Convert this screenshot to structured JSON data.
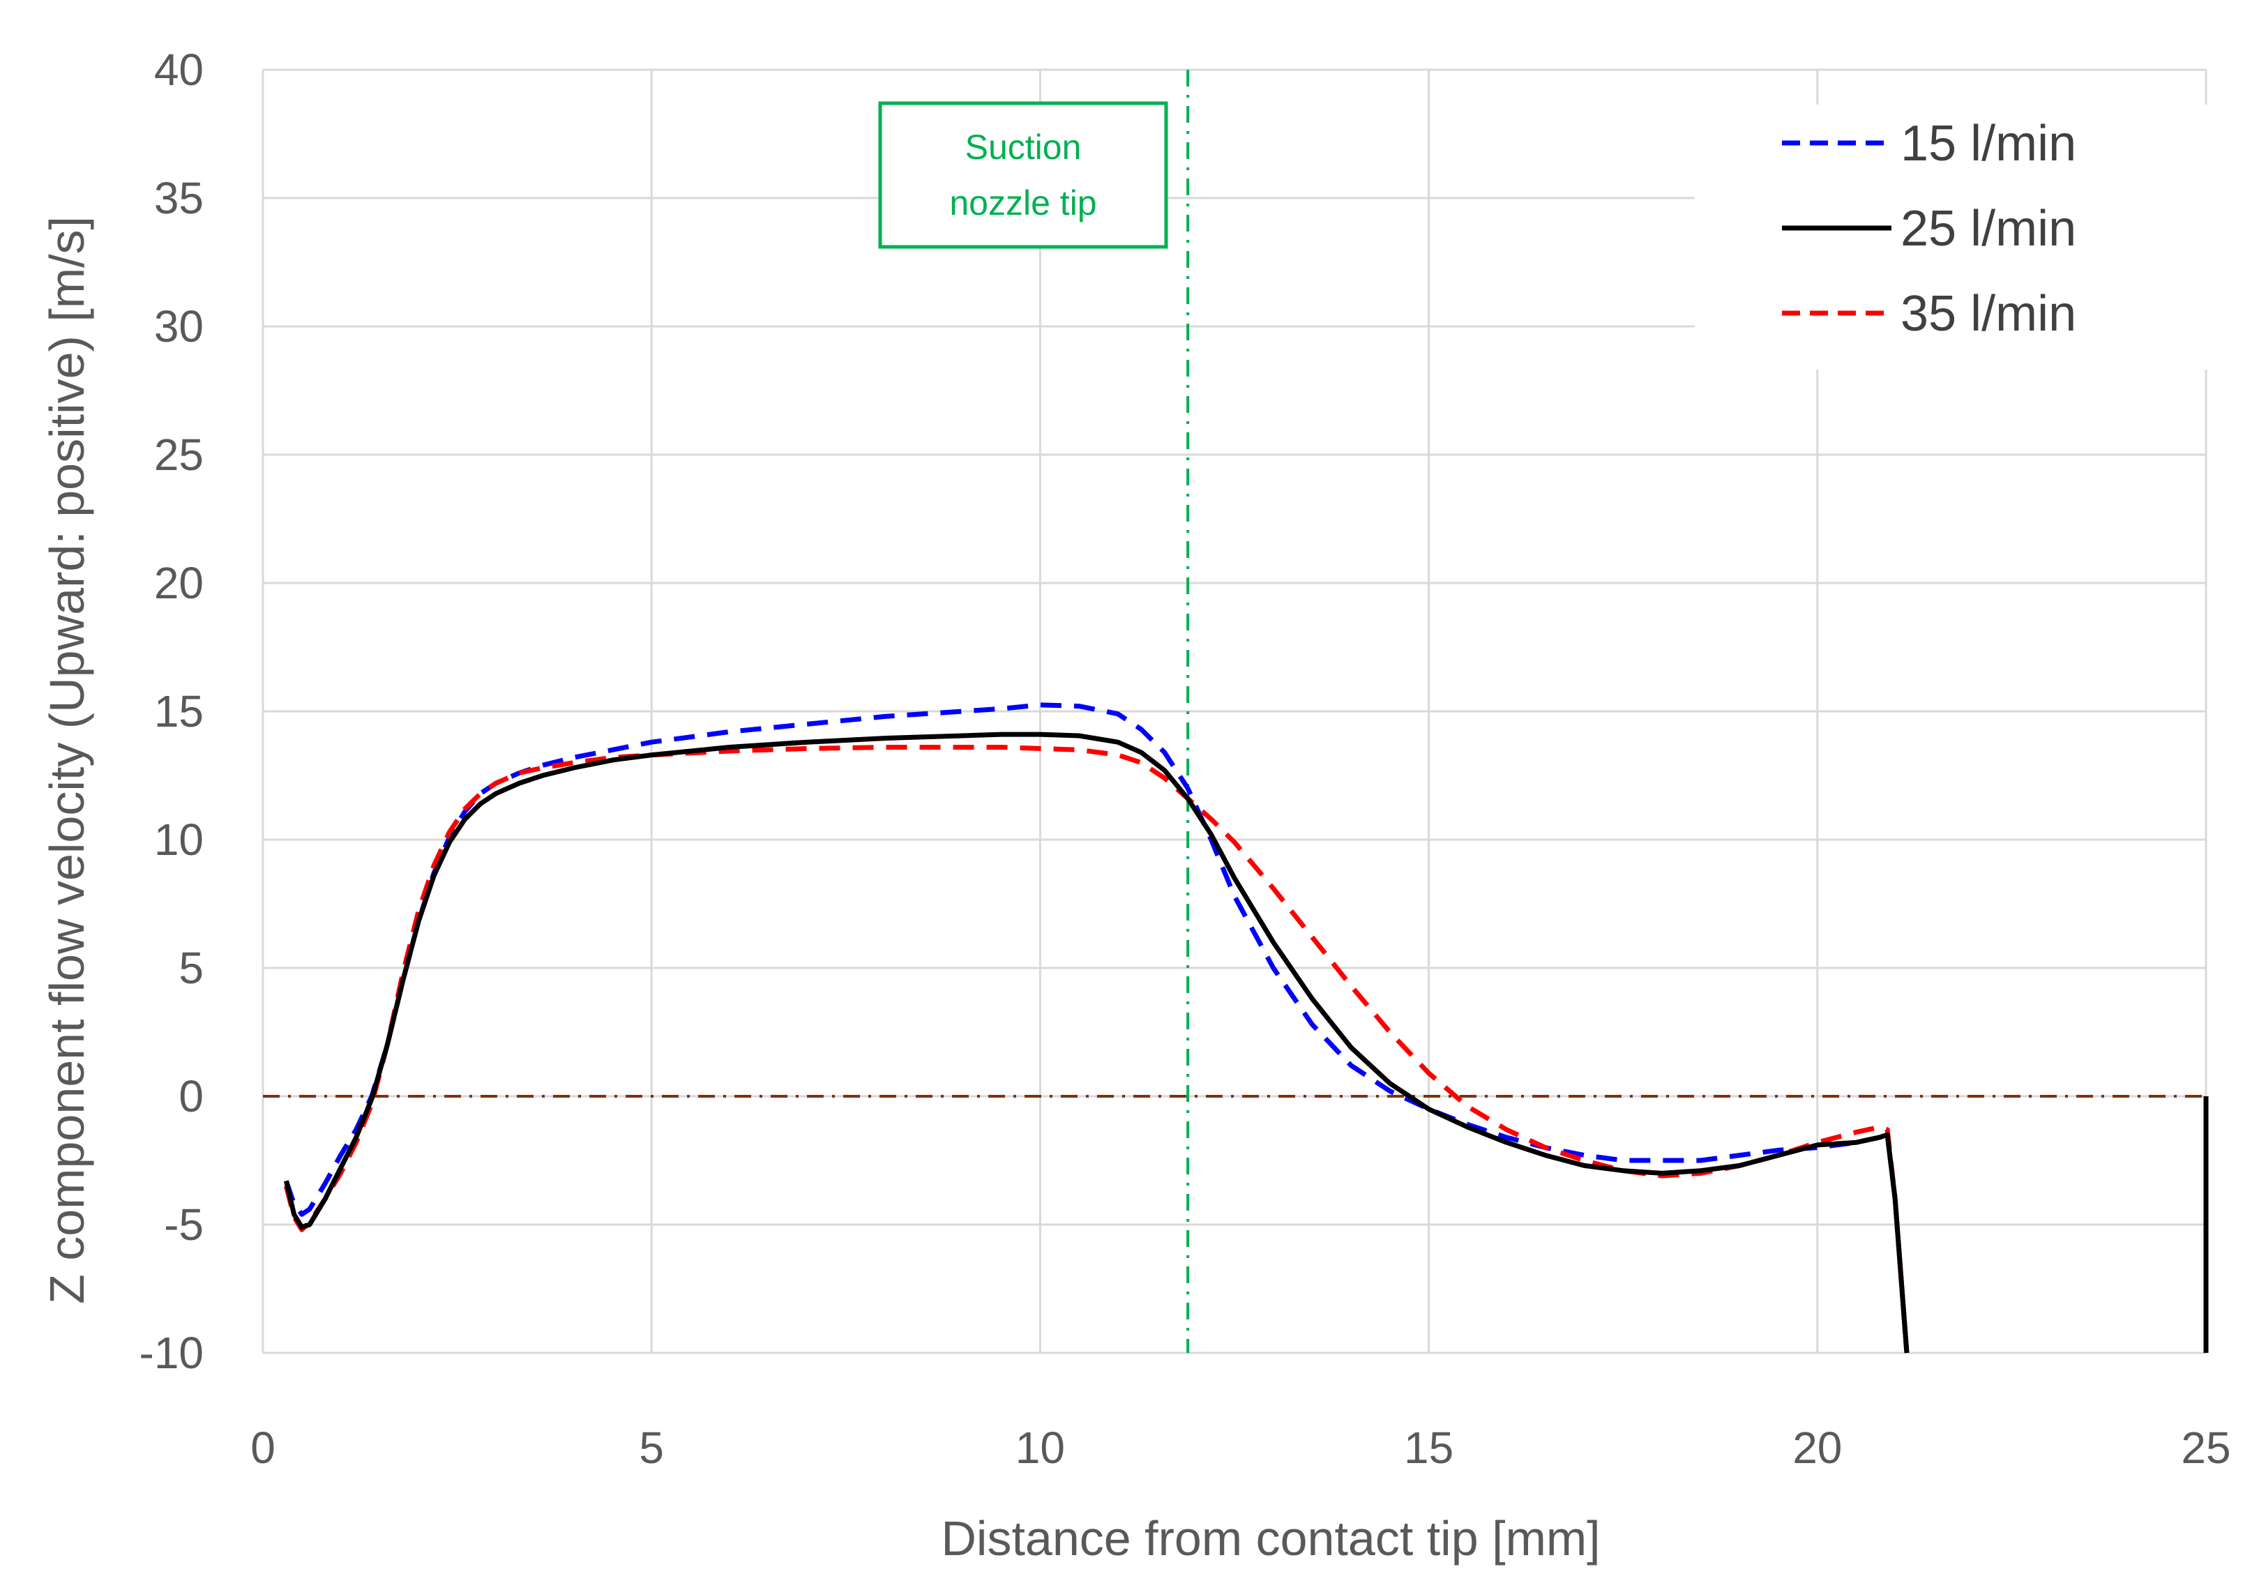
{
  "chart_data": {
    "type": "line",
    "title": "",
    "xlabel": "Distance from contact tip [mm]",
    "ylabel": "Z component flow velocity (Upward: positive) [m/s]",
    "xlim": [
      0,
      25
    ],
    "ylim": [
      -10,
      40
    ],
    "xticks": [
      0,
      5,
      10,
      15,
      20,
      25
    ],
    "yticks": [
      -10,
      -5,
      0,
      5,
      10,
      15,
      20,
      25,
      30,
      35,
      40
    ],
    "grid": true,
    "legend_position": "top-right",
    "series": [
      {
        "name": "15 l/min",
        "color": "#0000ff",
        "dash": "dashed",
        "x": [
          0.3,
          0.4,
          0.5,
          0.6,
          0.8,
          1.0,
          1.2,
          1.4,
          1.6,
          1.8,
          2.0,
          2.2,
          2.4,
          2.6,
          2.8,
          3.0,
          3.3,
          3.6,
          4.0,
          4.5,
          5.0,
          6.0,
          7.0,
          8.0,
          9.0,
          9.5,
          10.0,
          10.5,
          11.0,
          11.3,
          11.6,
          11.9,
          12.2,
          12.5,
          13.0,
          13.5,
          14.0,
          14.5,
          15.0,
          15.5,
          16.0,
          16.5,
          17.0,
          17.5,
          18.0,
          18.5,
          19.0,
          19.5,
          20.0,
          20.5,
          20.8,
          20.9,
          21.0,
          21.1,
          21.15
        ],
        "y": [
          -3.3,
          -4.2,
          -4.6,
          -4.4,
          -3.4,
          -2.3,
          -1.3,
          0.0,
          2.0,
          4.5,
          6.8,
          8.7,
          10.1,
          11.1,
          11.8,
          12.2,
          12.6,
          12.9,
          13.2,
          13.5,
          13.8,
          14.2,
          14.5,
          14.8,
          15.0,
          15.1,
          15.25,
          15.2,
          14.9,
          14.3,
          13.4,
          12.0,
          10.0,
          7.8,
          5.0,
          2.8,
          1.2,
          0.2,
          -0.5,
          -1.1,
          -1.6,
          -2.0,
          -2.3,
          -2.5,
          -2.5,
          -2.5,
          -2.3,
          -2.1,
          -2.0,
          -1.8,
          -1.6,
          -1.5,
          -4.0,
          -8.0,
          -10.0
        ]
      },
      {
        "name": "25 l/min",
        "color": "#000000",
        "dash": "solid",
        "x": [
          0.3,
          0.4,
          0.5,
          0.6,
          0.8,
          1.0,
          1.2,
          1.4,
          1.6,
          1.8,
          2.0,
          2.2,
          2.4,
          2.6,
          2.8,
          3.0,
          3.3,
          3.6,
          4.0,
          4.5,
          5.0,
          6.0,
          7.0,
          8.0,
          9.0,
          9.5,
          10.0,
          10.5,
          11.0,
          11.3,
          11.6,
          11.9,
          12.2,
          12.5,
          13.0,
          13.5,
          14.0,
          14.5,
          15.0,
          15.5,
          16.0,
          16.5,
          17.0,
          17.5,
          18.0,
          18.5,
          19.0,
          19.5,
          20.0,
          20.5,
          20.8,
          20.9,
          21.0,
          21.1,
          21.15
        ],
        "y": [
          -3.3,
          -4.6,
          -5.1,
          -5.0,
          -4.0,
          -2.8,
          -1.6,
          -0.1,
          2.0,
          4.5,
          6.8,
          8.6,
          9.9,
          10.8,
          11.4,
          11.8,
          12.2,
          12.5,
          12.8,
          13.1,
          13.3,
          13.6,
          13.8,
          13.95,
          14.05,
          14.1,
          14.1,
          14.05,
          13.8,
          13.4,
          12.7,
          11.6,
          10.2,
          8.5,
          6.0,
          3.8,
          1.9,
          0.5,
          -0.5,
          -1.2,
          -1.8,
          -2.3,
          -2.7,
          -2.9,
          -3.0,
          -2.9,
          -2.7,
          -2.3,
          -1.9,
          -1.8,
          -1.6,
          -1.5,
          -4.0,
          -8.0,
          -10.0
        ]
      },
      {
        "name": "35 l/min",
        "color": "#ff0000",
        "dash": "dashed",
        "x": [
          0.3,
          0.4,
          0.5,
          0.6,
          0.8,
          1.0,
          1.2,
          1.4,
          1.6,
          1.8,
          2.0,
          2.2,
          2.4,
          2.6,
          2.8,
          3.0,
          3.3,
          3.6,
          4.0,
          4.5,
          5.0,
          6.0,
          7.0,
          8.0,
          9.0,
          9.5,
          10.0,
          10.5,
          11.0,
          11.3,
          11.6,
          11.9,
          12.2,
          12.5,
          13.0,
          13.5,
          14.0,
          14.5,
          15.0,
          15.5,
          16.0,
          16.5,
          17.0,
          17.5,
          18.0,
          18.5,
          19.0,
          19.5,
          20.0,
          20.5,
          20.8,
          20.9,
          21.0,
          21.1,
          21.15
        ],
        "y": [
          -3.5,
          -4.7,
          -5.2,
          -4.9,
          -4.0,
          -3.0,
          -1.8,
          -0.3,
          2.0,
          4.8,
          7.2,
          9.0,
          10.3,
          11.2,
          11.8,
          12.2,
          12.6,
          12.8,
          13.0,
          13.2,
          13.3,
          13.45,
          13.55,
          13.6,
          13.6,
          13.6,
          13.55,
          13.5,
          13.3,
          13.0,
          12.4,
          11.6,
          10.8,
          9.9,
          8.1,
          6.2,
          4.3,
          2.5,
          0.9,
          -0.4,
          -1.3,
          -2.0,
          -2.5,
          -2.9,
          -3.1,
          -3.0,
          -2.7,
          -2.3,
          -1.8,
          -1.4,
          -1.2,
          -1.3,
          -4.0,
          -8.0,
          -10.0
        ]
      }
    ],
    "extra_lines": [
      {
        "name": "35 l/min",
        "color": "#ff0000",
        "dash": "dashed",
        "x": [
          25,
          25
        ],
        "y": [
          0,
          -10
        ]
      },
      {
        "name": "25 l/min",
        "color": "#000000",
        "dash": "solid",
        "x": [
          25,
          25
        ],
        "y": [
          0,
          -10
        ]
      }
    ],
    "reference_lines": [
      {
        "orientation": "horizontal",
        "value": 0,
        "color": "#7f3300",
        "dash": "dash-dot"
      },
      {
        "orientation": "vertical",
        "value": 11.9,
        "color": "#00b050",
        "dash": "dash-dot"
      }
    ],
    "annotations": [
      {
        "lines": [
          "Suction",
          "nozzle tip"
        ],
        "color": "#00b050",
        "anchor_x": 9.7,
        "anchor_y": 35.5
      }
    ]
  }
}
